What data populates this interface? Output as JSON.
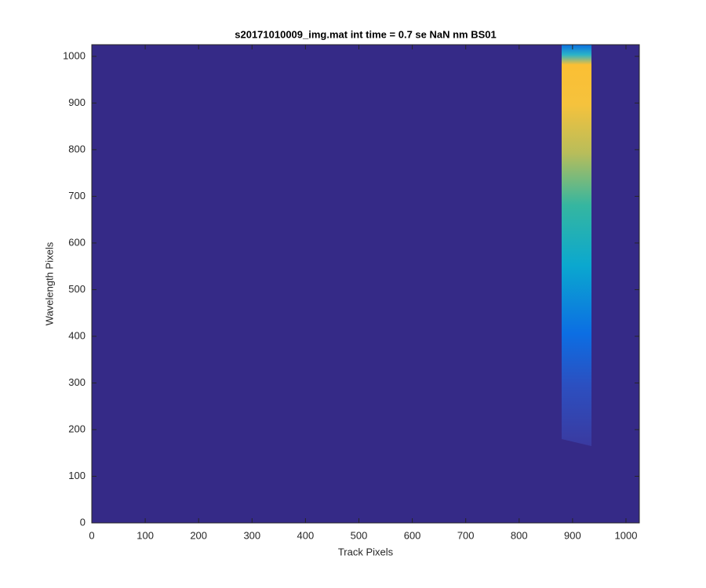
{
  "chart_data": {
    "type": "image",
    "title": "s20171010009_img.mat int time = 0.7 se  NaN nm BS01",
    "xlabel": "Track Pixels",
    "ylabel": "Wavelength Pixels",
    "xlim": [
      0,
      1025
    ],
    "ylim": [
      0,
      1025
    ],
    "xticks": [
      0,
      100,
      200,
      300,
      400,
      500,
      600,
      700,
      800,
      900,
      1000
    ],
    "yticks": [
      0,
      100,
      200,
      300,
      400,
      500,
      600,
      700,
      800,
      900,
      1000
    ],
    "background": "#352a87"
  }
}
